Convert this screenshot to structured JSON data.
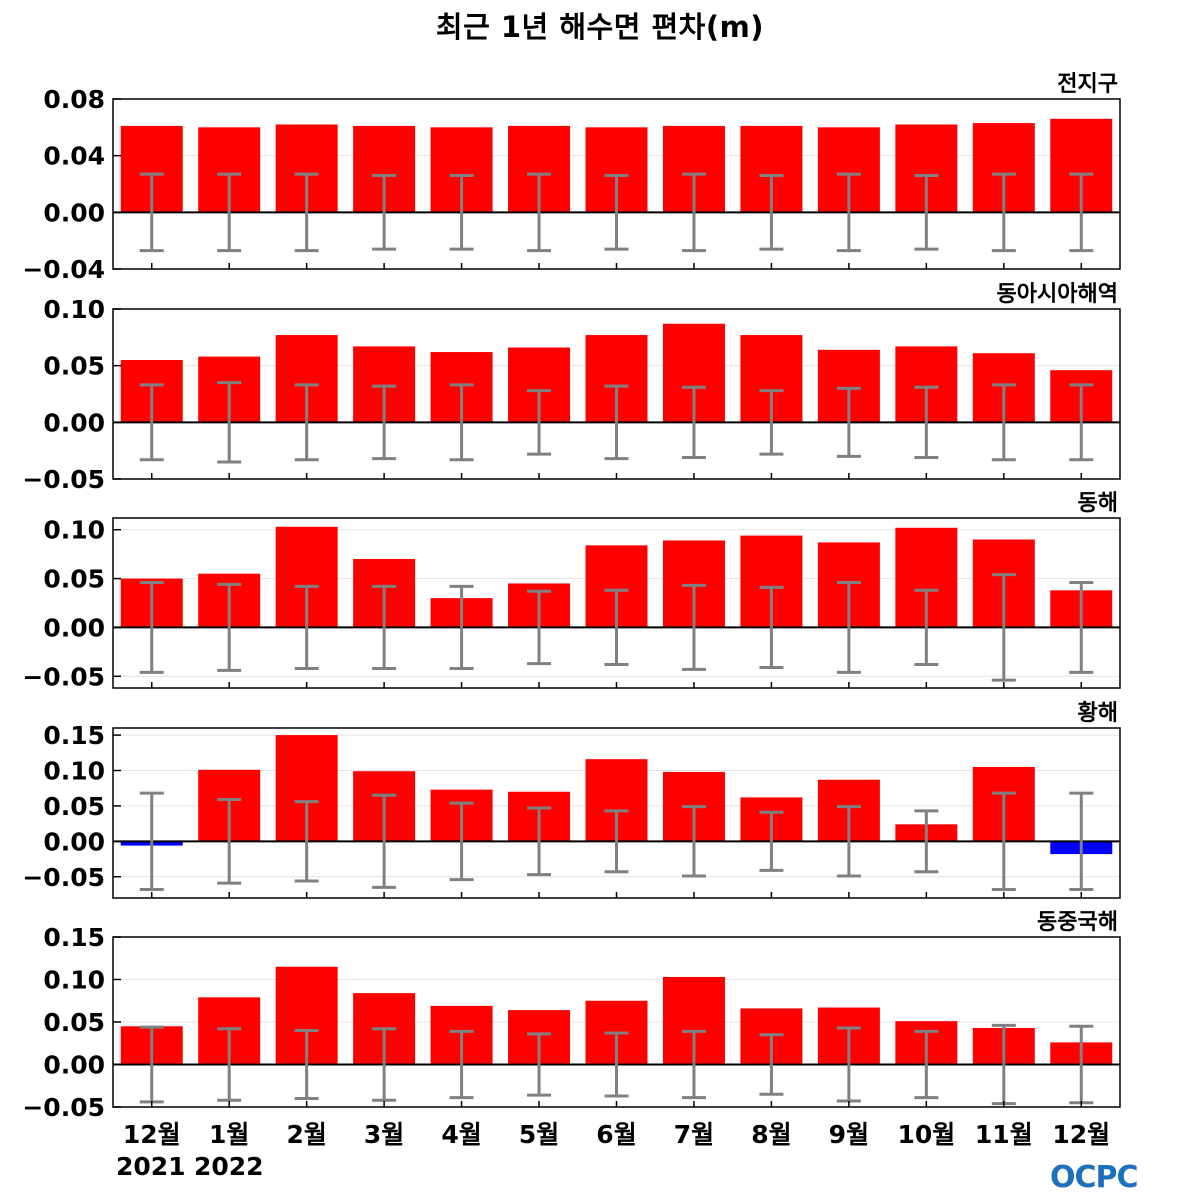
{
  "title": "최근 1년 해수면 편차(m)",
  "years": {
    "left": "2021",
    "right": "2022"
  },
  "logo_text": "OCPC",
  "colors": {
    "positive": "#ff0000",
    "negative": "#0000ff",
    "error_bar": "#808080",
    "zero_line": "#000000"
  },
  "chart_data": [
    {
      "type": "bar",
      "panel_label": "전지구",
      "categories": [
        "12월",
        "1월",
        "2월",
        "3월",
        "4월",
        "5월",
        "6월",
        "7월",
        "8월",
        "9월",
        "10월",
        "11월",
        "12월"
      ],
      "ylim": [
        -0.04,
        0.08
      ],
      "yticks": [
        "0.08",
        "0.04",
        "0.00",
        "−0.04"
      ],
      "ytick_values": [
        0.08,
        0.04,
        0.0,
        -0.04
      ],
      "values": [
        0.061,
        0.06,
        0.062,
        0.061,
        0.06,
        0.061,
        0.06,
        0.061,
        0.061,
        0.06,
        0.062,
        0.063,
        0.066
      ],
      "error": [
        0.027,
        0.027,
        0.027,
        0.026,
        0.026,
        0.027,
        0.026,
        0.027,
        0.026,
        0.027,
        0.026,
        0.027,
        0.027
      ]
    },
    {
      "type": "bar",
      "panel_label": "동아시아해역",
      "categories": [
        "12월",
        "1월",
        "2월",
        "3월",
        "4월",
        "5월",
        "6월",
        "7월",
        "8월",
        "9월",
        "10월",
        "11월",
        "12월"
      ],
      "ylim": [
        -0.05,
        0.1
      ],
      "yticks": [
        "0.10",
        "0.05",
        "0.00",
        "−0.05"
      ],
      "ytick_values": [
        0.1,
        0.05,
        0.0,
        -0.05
      ],
      "values": [
        0.055,
        0.058,
        0.077,
        0.067,
        0.062,
        0.066,
        0.077,
        0.087,
        0.077,
        0.064,
        0.067,
        0.061,
        0.046
      ],
      "error": [
        0.033,
        0.035,
        0.033,
        0.032,
        0.033,
        0.028,
        0.032,
        0.031,
        0.028,
        0.03,
        0.031,
        0.033,
        0.033
      ]
    },
    {
      "type": "bar",
      "panel_label": "동해",
      "categories": [
        "12월",
        "1월",
        "2월",
        "3월",
        "4월",
        "5월",
        "6월",
        "7월",
        "8월",
        "9월",
        "10월",
        "11월",
        "12월"
      ],
      "ylim": [
        -0.062,
        0.112
      ],
      "yticks": [
        "0.10",
        "0.05",
        "0.00",
        "−0.05"
      ],
      "ytick_values": [
        0.1,
        0.05,
        0.0,
        -0.05
      ],
      "values": [
        0.05,
        0.055,
        0.103,
        0.07,
        0.03,
        0.045,
        0.084,
        0.089,
        0.094,
        0.087,
        0.102,
        0.09,
        0.038
      ],
      "error": [
        0.046,
        0.044,
        0.042,
        0.042,
        0.042,
        0.037,
        0.038,
        0.043,
        0.041,
        0.046,
        0.038,
        0.054,
        0.046
      ]
    },
    {
      "type": "bar",
      "panel_label": "황해",
      "categories": [
        "12월",
        "1월",
        "2월",
        "3월",
        "4월",
        "5월",
        "6월",
        "7월",
        "8월",
        "9월",
        "10월",
        "11월",
        "12월"
      ],
      "ylim": [
        -0.08,
        0.16
      ],
      "yticks": [
        "0.15",
        "0.10",
        "0.05",
        "0.00",
        "−0.05"
      ],
      "ytick_values": [
        0.15,
        0.1,
        0.05,
        0.0,
        -0.05
      ],
      "values": [
        -0.006,
        0.101,
        0.15,
        0.099,
        0.073,
        0.07,
        0.116,
        0.098,
        0.062,
        0.087,
        0.024,
        0.105,
        -0.018
      ],
      "error": [
        0.068,
        0.059,
        0.056,
        0.065,
        0.054,
        0.047,
        0.043,
        0.049,
        0.041,
        0.049,
        0.043,
        0.068,
        0.068
      ]
    },
    {
      "type": "bar",
      "panel_label": "동중국해",
      "categories": [
        "12월",
        "1월",
        "2월",
        "3월",
        "4월",
        "5월",
        "6월",
        "7월",
        "8월",
        "9월",
        "10월",
        "11월",
        "12월"
      ],
      "ylim": [
        -0.05,
        0.15
      ],
      "yticks": [
        "0.15",
        "0.10",
        "0.05",
        "0.00",
        "−0.05"
      ],
      "ytick_values": [
        0.15,
        0.1,
        0.05,
        0.0,
        -0.05
      ],
      "values": [
        0.045,
        0.079,
        0.115,
        0.084,
        0.069,
        0.064,
        0.075,
        0.103,
        0.066,
        0.067,
        0.051,
        0.043,
        0.026
      ],
      "error": [
        0.044,
        0.042,
        0.04,
        0.042,
        0.039,
        0.036,
        0.037,
        0.039,
        0.035,
        0.043,
        0.039,
        0.046,
        0.045
      ]
    }
  ]
}
